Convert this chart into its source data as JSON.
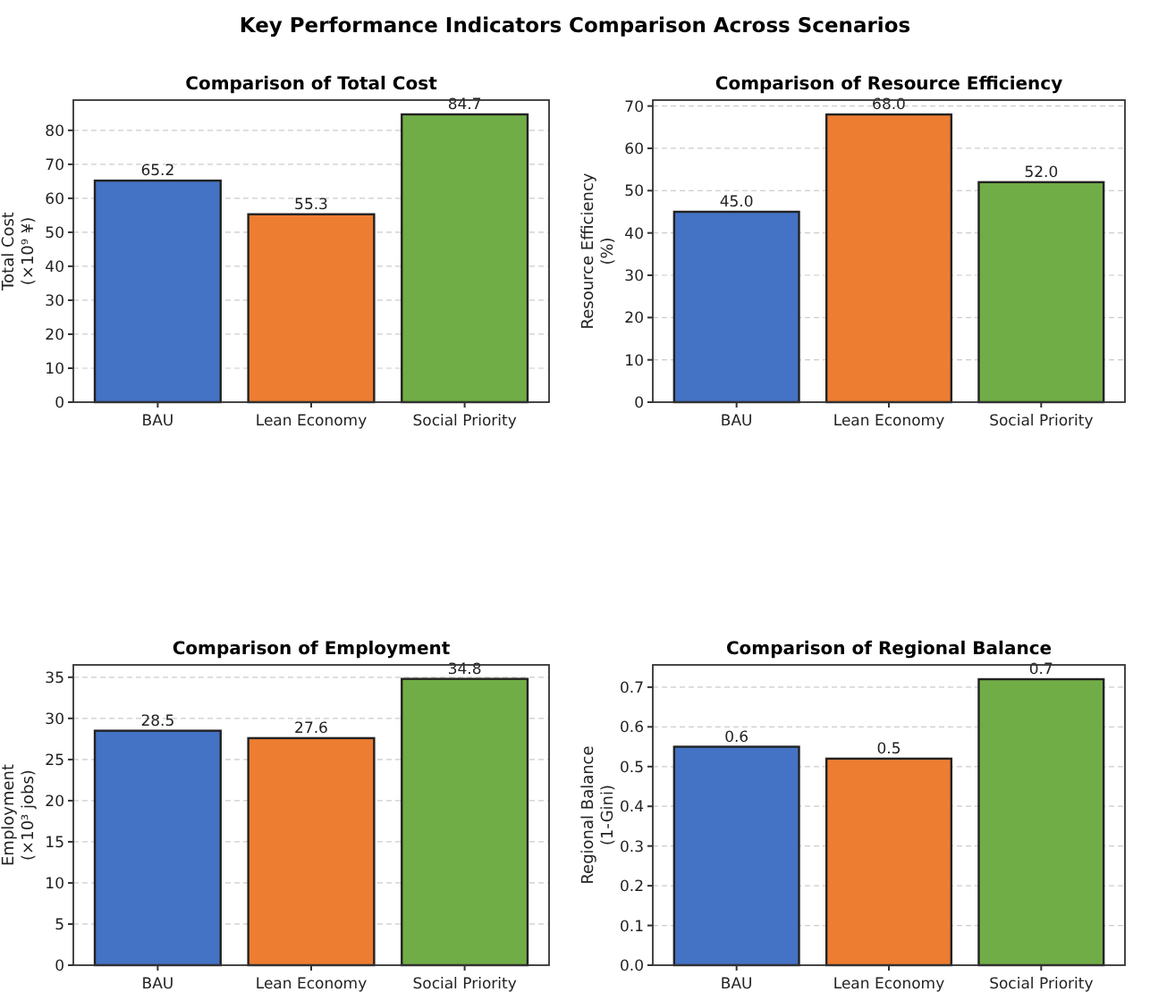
{
  "chart_data": [
    {
      "type": "bar",
      "title": "Comparison of Total Cost",
      "ylabel": "Total Cost\n(×10⁹ ¥)",
      "annotations": [
        "Key Performance Indicators Comparison Across Scenarios"
      ],
      "categories": [
        "BAU",
        "Lean Economy",
        "Social Priority"
      ],
      "values": [
        65.2,
        55.3,
        84.7
      ],
      "colors": [
        "#4472c4",
        "#ed7d31",
        "#70ad47"
      ],
      "ylim": [
        0,
        88.9
      ],
      "yticks": [
        0,
        10,
        20,
        30,
        40,
        50,
        60,
        70,
        80
      ],
      "grid": "y",
      "data_labels": true
    },
    {
      "type": "bar",
      "title": "Comparison of Resource Efficiency",
      "ylabel": "Resource Efficiency\n(%)",
      "categories": [
        "BAU",
        "Lean Economy",
        "Social Priority"
      ],
      "values": [
        45,
        68,
        52
      ],
      "value_labels": [
        "45.0",
        "68.0",
        "52.0"
      ],
      "colors": [
        "#4472c4",
        "#ed7d31",
        "#70ad47"
      ],
      "ylim": [
        0,
        71.4
      ],
      "yticks": [
        0,
        10,
        20,
        30,
        40,
        50,
        60,
        70
      ],
      "grid": "y"
    },
    {
      "type": "bar",
      "title": "Comparison of Employment",
      "ylabel": "Employment\n(×10³ jobs)",
      "categories": [
        "BAU",
        "Lean Economy",
        "Social Priority"
      ],
      "values": [
        28.5,
        27.6,
        34.8
      ],
      "colors": [
        "#4472c4",
        "#ed7d31",
        "#70ad47"
      ],
      "ylim": [
        0,
        36.5
      ],
      "yticks": [
        0,
        5,
        10,
        15,
        20,
        25,
        30,
        35
      ],
      "grid": "y",
      "data_labels": true
    },
    {
      "type": "bar",
      "title": "Comparison of Regional Balance",
      "ylabel": "Regional Balance\n(1-Gini)",
      "categories": [
        "BAU",
        "Lean Economy",
        "Social Priority"
      ],
      "values": [
        0.55,
        0.52,
        0.72
      ],
      "value_labels": [
        "0.6",
        "0.5",
        "0.7"
      ],
      "colors": [
        "#4472c4",
        "#ed7d31",
        "#70ad47"
      ],
      "ylim": [
        0,
        0.756
      ],
      "yticks": [
        {
          "value": 0,
          "label": "0.0"
        },
        0.1,
        0.2,
        0.3,
        0.4,
        0.5,
        0.6,
        0.7
      ],
      "grid": "y"
    }
  ]
}
